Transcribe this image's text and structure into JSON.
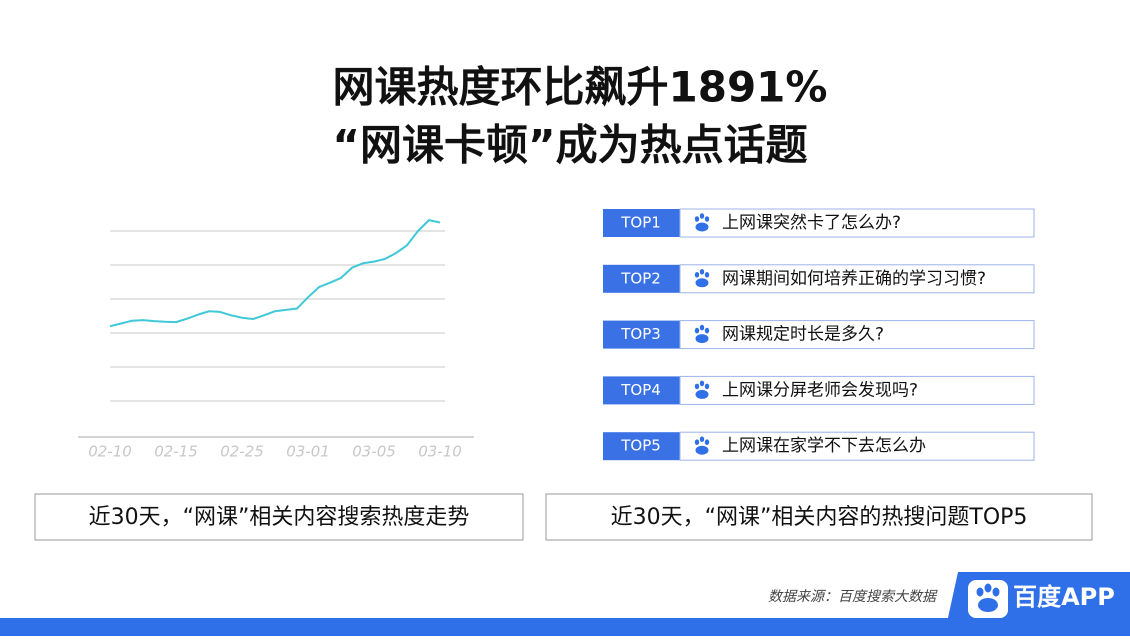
{
  "title": [
    "网课热度环比飙升1891%",
    "“网课卡顿”成为热点话题"
  ],
  "chart_data": {
    "type": "line",
    "x": [
      "02-10",
      null,
      null,
      null,
      null,
      null,
      "02-15",
      null,
      null,
      null,
      null,
      null,
      "02-25",
      null,
      null,
      null,
      null,
      null,
      "03-01",
      null,
      null,
      null,
      null,
      null,
      "03-05",
      null,
      null,
      null,
      null,
      null,
      "03-10"
    ],
    "values": [
      3.2,
      3.28,
      3.36,
      3.38,
      3.35,
      3.33,
      3.32,
      3.42,
      3.54,
      3.64,
      3.62,
      3.52,
      3.45,
      3.41,
      3.52,
      3.64,
      3.68,
      3.72,
      4.05,
      4.35,
      4.48,
      4.62,
      4.92,
      5.05,
      5.1,
      5.18,
      5.35,
      5.58,
      6.0,
      6.32,
      6.25
    ],
    "color": "#3fc8d8",
    "ylim": [
      0,
      7
    ],
    "yticks": [
      1,
      2,
      3,
      4,
      5,
      6
    ],
    "grid": true,
    "caption": "近30天，“网课”相关内容搜索热度走势"
  },
  "top_list": {
    "caption": "近30天，“网课”相关内容的热搜问题TOP5",
    "items": [
      {
        "rank": "TOP1",
        "question": "上网课突然卡了怎么办?"
      },
      {
        "rank": "TOP2",
        "question": "网课期间如何培养正确的学习习惯?"
      },
      {
        "rank": "TOP3",
        "question": "网课规定时长是多久?"
      },
      {
        "rank": "TOP4",
        "question": "上网课分屏老师会发现吗?"
      },
      {
        "rank": "TOP5",
        "question": "上网课在家学不下去怎么办"
      }
    ]
  },
  "footer": {
    "source": "数据来源：百度搜索大数据",
    "brand": "百度APP"
  }
}
